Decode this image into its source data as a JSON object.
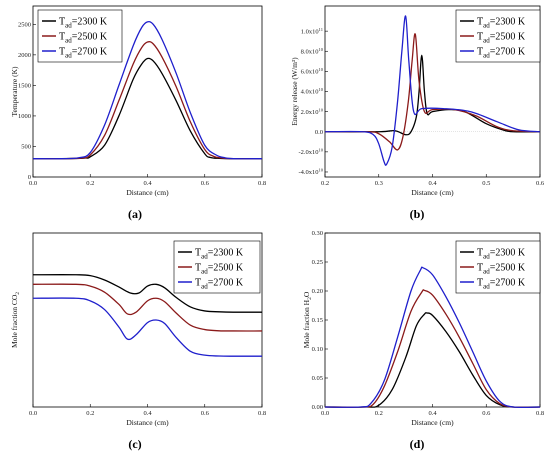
{
  "chart_data": [
    {
      "panel": "(a)",
      "type": "line",
      "xlabel": "Distance (cm)",
      "ylabel": "Temperature (K)",
      "xlim": [
        0.0,
        0.8
      ],
      "ylim": [
        0,
        2800
      ],
      "xticks": [
        "0.0",
        "0.2",
        "0.4",
        "0.6",
        "0.8"
      ],
      "yticks": [
        "0",
        "500",
        "1000",
        "1500",
        "2000",
        "2500"
      ],
      "legend": "top-left",
      "series": [
        {
          "label_main": "T",
          "label_sub": "ad",
          "label_rest": "=2300 K",
          "color": "#000000",
          "x": [
            0.0,
            0.1,
            0.18,
            0.2,
            0.25,
            0.3,
            0.35,
            0.38,
            0.4,
            0.42,
            0.45,
            0.5,
            0.55,
            0.6,
            0.62,
            0.65,
            0.7,
            0.8
          ],
          "y": [
            300,
            300,
            310,
            330,
            520,
            1000,
            1600,
            1850,
            1940,
            1900,
            1700,
            1250,
            750,
            380,
            320,
            305,
            300,
            300
          ]
        },
        {
          "label_main": "T",
          "label_sub": "ad",
          "label_rest": "=2500 K",
          "color": "#8b1a1a",
          "x": [
            0.0,
            0.1,
            0.17,
            0.2,
            0.25,
            0.3,
            0.35,
            0.38,
            0.4,
            0.42,
            0.45,
            0.5,
            0.55,
            0.6,
            0.63,
            0.66,
            0.7,
            0.8
          ],
          "y": [
            300,
            300,
            310,
            360,
            680,
            1250,
            1850,
            2120,
            2210,
            2180,
            1970,
            1480,
            900,
            450,
            340,
            310,
            300,
            300
          ]
        },
        {
          "label_main": "T",
          "label_sub": "ad",
          "label_rest": "=2700 K",
          "color": "#1f1fcc",
          "x": [
            0.0,
            0.1,
            0.16,
            0.2,
            0.25,
            0.3,
            0.35,
            0.38,
            0.4,
            0.42,
            0.45,
            0.5,
            0.55,
            0.6,
            0.64,
            0.67,
            0.7,
            0.8
          ],
          "y": [
            300,
            300,
            315,
            400,
            850,
            1500,
            2150,
            2450,
            2540,
            2500,
            2260,
            1700,
            1050,
            520,
            360,
            315,
            300,
            300
          ]
        }
      ]
    },
    {
      "panel": "(b)",
      "type": "line",
      "xlabel": "Distance (cm)",
      "ylabel": "Energy release (W/m³)",
      "xlim": [
        0.2,
        0.6
      ],
      "ylim": [
        -45000000000.0,
        125000000000.0
      ],
      "xticks": [
        "0.2",
        "0.3",
        "0.4",
        "0.5",
        "0.6"
      ],
      "yticks": [
        {
          "m": "-4.0x10",
          "e": "10",
          "v": -40000000000.0
        },
        {
          "m": "-2.0x10",
          "e": "10",
          "v": -20000000000.0
        },
        {
          "m": "0.0",
          "e": "",
          "v": 0
        },
        {
          "m": "2.0x10",
          "e": "10",
          "v": 20000000000.0
        },
        {
          "m": "4.0x10",
          "e": "10",
          "v": 40000000000.0
        },
        {
          "m": "6.0x10",
          "e": "10",
          "v": 60000000000.0
        },
        {
          "m": "8.0x10",
          "e": "10",
          "v": 80000000000.0
        },
        {
          "m": "1.0x10",
          "e": "11",
          "v": 100000000000.0
        }
      ],
      "legend": "top-right",
      "series": [
        {
          "label_main": "T",
          "label_sub": "ad",
          "label_rest": "=2300 K",
          "color": "#000000",
          "x": [
            0.2,
            0.3,
            0.33,
            0.35,
            0.36,
            0.37,
            0.375,
            0.38,
            0.385,
            0.39,
            0.4,
            0.43,
            0.46,
            0.5,
            0.53,
            0.55,
            0.6
          ],
          "y": [
            0,
            0,
            1000000000.0,
            -3000000000.0,
            0,
            15000000000.0,
            40000000000.0,
            76000000000.0,
            40000000000.0,
            18000000000.0,
            20000000000.0,
            22000000000.0,
            20000000000.0,
            8000000000.0,
            2000000000.0,
            0,
            0
          ]
        },
        {
          "label_main": "T",
          "label_sub": "ad",
          "label_rest": "=2500 K",
          "color": "#8b1a1a",
          "x": [
            0.2,
            0.28,
            0.3,
            0.32,
            0.335,
            0.345,
            0.355,
            0.362,
            0.368,
            0.375,
            0.385,
            0.4,
            0.44,
            0.48,
            0.52,
            0.55,
            0.6
          ],
          "y": [
            0,
            0,
            -2000000000.0,
            -10000000000.0,
            -18000000000.0,
            -5000000000.0,
            30000000000.0,
            70000000000.0,
            97000000000.0,
            50000000000.0,
            20000000000.0,
            22000000000.0,
            22000000000.0,
            16000000000.0,
            5000000000.0,
            1000000000.0,
            0
          ]
        },
        {
          "label_main": "T",
          "label_sub": "ad",
          "label_rest": "=2700 K",
          "color": "#1f1fcc",
          "x": [
            0.2,
            0.27,
            0.29,
            0.3,
            0.31,
            0.315,
            0.325,
            0.335,
            0.343,
            0.35,
            0.356,
            0.365,
            0.38,
            0.42,
            0.47,
            0.52,
            0.56,
            0.6
          ],
          "y": [
            0,
            0,
            -3000000000.0,
            -12000000000.0,
            -30000000000.0,
            -32000000000.0,
            -15000000000.0,
            30000000000.0,
            80000000000.0,
            115000000000.0,
            70000000000.0,
            20000000000.0,
            23000000000.0,
            23000000000.0,
            20000000000.0,
            10000000000.0,
            2000000000.0,
            0
          ]
        }
      ]
    },
    {
      "panel": "(c)",
      "type": "line",
      "xlabel": "Distance (cm)",
      "ylabel_main": "Mole fraction CO",
      "ylabel_sub": "2",
      "xlim": [
        0.0,
        0.8
      ],
      "ylim": [
        0.0,
        1.0
      ],
      "xticks": [
        "0.0",
        "0.2",
        "0.4",
        "0.6",
        "0.8"
      ],
      "legend": "top-right",
      "series": [
        {
          "label_main": "T",
          "label_sub": "ad",
          "label_rest": "=2300 K",
          "color": "#000000",
          "x": [
            0.0,
            0.15,
            0.2,
            0.25,
            0.3,
            0.34,
            0.37,
            0.4,
            0.43,
            0.46,
            0.5,
            0.55,
            0.6,
            0.65,
            0.7,
            0.8
          ],
          "y": [
            0.76,
            0.76,
            0.755,
            0.73,
            0.69,
            0.655,
            0.655,
            0.695,
            0.705,
            0.685,
            0.63,
            0.575,
            0.552,
            0.547,
            0.545,
            0.545
          ]
        },
        {
          "label_main": "T",
          "label_sub": "ad",
          "label_rest": "=2500 K",
          "color": "#8b1a1a",
          "x": [
            0.0,
            0.15,
            0.2,
            0.25,
            0.3,
            0.33,
            0.36,
            0.4,
            0.43,
            0.46,
            0.5,
            0.55,
            0.6,
            0.65,
            0.7,
            0.8
          ],
          "y": [
            0.705,
            0.705,
            0.695,
            0.66,
            0.59,
            0.535,
            0.545,
            0.61,
            0.625,
            0.605,
            0.54,
            0.47,
            0.445,
            0.438,
            0.437,
            0.437
          ]
        },
        {
          "label_main": "T",
          "label_sub": "ad",
          "label_rest": "=2700 K",
          "color": "#1f1fcc",
          "x": [
            0.0,
            0.15,
            0.2,
            0.25,
            0.3,
            0.33,
            0.36,
            0.4,
            0.43,
            0.46,
            0.5,
            0.55,
            0.6,
            0.65,
            0.7,
            0.8
          ],
          "y": [
            0.625,
            0.625,
            0.61,
            0.56,
            0.46,
            0.39,
            0.415,
            0.485,
            0.5,
            0.48,
            0.4,
            0.32,
            0.298,
            0.293,
            0.292,
            0.292
          ]
        }
      ]
    },
    {
      "panel": "(d)",
      "type": "line",
      "xlabel": "Distance (cm)",
      "ylabel_main": "Mole fraction H",
      "ylabel_sub": "2",
      "ylabel_rest": "O",
      "xlim": [
        0.0,
        0.8
      ],
      "ylim": [
        0.0,
        0.3
      ],
      "xticks": [
        "0.0",
        "0.2",
        "0.4",
        "0.6",
        "0.8"
      ],
      "yticks": [
        "0.00",
        "0.05",
        "0.10",
        "0.15",
        "0.20",
        "0.25",
        "0.30"
      ],
      "legend": "top-right",
      "series": [
        {
          "label_main": "T",
          "label_sub": "ad",
          "label_rest": "=2300 K",
          "color": "#000000",
          "x": [
            0.0,
            0.15,
            0.2,
            0.25,
            0.3,
            0.34,
            0.37,
            0.38,
            0.4,
            0.45,
            0.5,
            0.55,
            0.6,
            0.65,
            0.7,
            0.8
          ],
          "y": [
            0,
            0,
            0.003,
            0.03,
            0.085,
            0.14,
            0.16,
            0.162,
            0.158,
            0.13,
            0.095,
            0.055,
            0.02,
            0.004,
            0,
            0
          ]
        },
        {
          "label_main": "T",
          "label_sub": "ad",
          "label_rest": "=2500 K",
          "color": "#8b1a1a",
          "x": [
            0.0,
            0.14,
            0.18,
            0.22,
            0.27,
            0.32,
            0.36,
            0.37,
            0.4,
            0.45,
            0.5,
            0.55,
            0.6,
            0.65,
            0.7,
            0.8
          ],
          "y": [
            0,
            0,
            0.005,
            0.035,
            0.095,
            0.165,
            0.198,
            0.201,
            0.193,
            0.16,
            0.12,
            0.075,
            0.03,
            0.006,
            0,
            0
          ]
        },
        {
          "label_main": "T",
          "label_sub": "ad",
          "label_rest": "=2700 K",
          "color": "#1f1fcc",
          "x": [
            0.0,
            0.13,
            0.17,
            0.22,
            0.27,
            0.32,
            0.355,
            0.365,
            0.4,
            0.45,
            0.5,
            0.55,
            0.6,
            0.65,
            0.7,
            0.8
          ],
          "y": [
            0,
            0,
            0.006,
            0.045,
            0.12,
            0.2,
            0.236,
            0.24,
            0.228,
            0.19,
            0.145,
            0.095,
            0.045,
            0.01,
            0,
            0
          ]
        }
      ]
    }
  ]
}
